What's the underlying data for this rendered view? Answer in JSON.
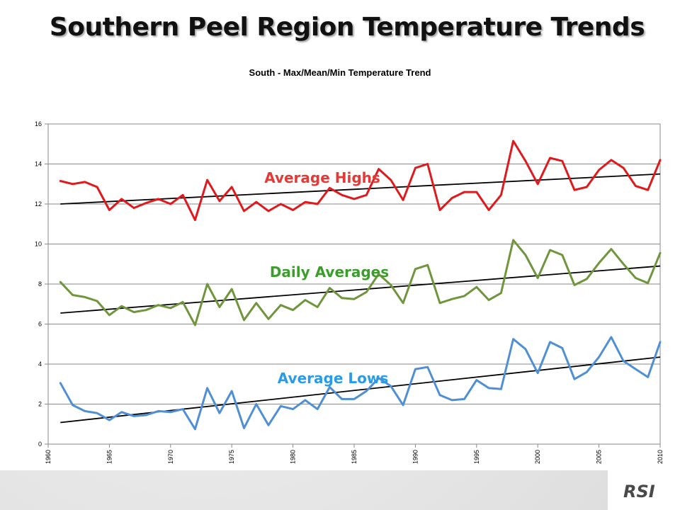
{
  "slide_title": "Southern Peel Region Temperature Trends",
  "logo_text": "RSI",
  "colors": {
    "highs": "#e0191c",
    "means": "#6f963c",
    "lows": "#4f8fd6",
    "trend": "#000000",
    "highs_label": "#e53935",
    "means_label": "#3c9e2a",
    "lows_label": "#2a9be8"
  },
  "chart_data": {
    "type": "line",
    "title": "South - Max/Mean/Min Temperature Trend",
    "xlim": [
      1960,
      2010
    ],
    "ylim": [
      0,
      16
    ],
    "x_ticks": [
      1960,
      1965,
      1970,
      1975,
      1980,
      1985,
      1990,
      1995,
      2000,
      2005,
      2010
    ],
    "y_ticks": [
      0,
      2,
      4,
      6,
      8,
      10,
      12,
      14,
      16
    ],
    "grid": true,
    "annotations": [
      "Average Highs",
      "Daily Averages",
      "Average Lows"
    ],
    "x": [
      1961,
      1962,
      1963,
      1964,
      1965,
      1966,
      1967,
      1968,
      1969,
      1970,
      1971,
      1972,
      1973,
      1974,
      1975,
      1976,
      1977,
      1978,
      1979,
      1980,
      1981,
      1982,
      1983,
      1984,
      1985,
      1986,
      1987,
      1988,
      1989,
      1990,
      1991,
      1992,
      1993,
      1994,
      1995,
      1996,
      1997,
      1998,
      1999,
      2000,
      2001,
      2002,
      2003,
      2004,
      2005,
      2006,
      2007,
      2008,
      2009,
      2010
    ],
    "series": [
      {
        "values": [
          13.15,
          13.0,
          13.1,
          12.85,
          11.7,
          12.25,
          11.8,
          12.05,
          12.25,
          12.0,
          12.45,
          11.2,
          13.2,
          12.15,
          12.85,
          11.65,
          12.1,
          11.65,
          12.0,
          11.7,
          12.1,
          12.0,
          12.8,
          12.45,
          12.25,
          12.45,
          13.75,
          13.2,
          12.2,
          13.8,
          14.0,
          11.7,
          12.3,
          12.6,
          12.6,
          11.7,
          12.45,
          15.15,
          14.15,
          13.0,
          14.3,
          14.15,
          12.7,
          12.85,
          13.7,
          14.2,
          13.8,
          12.9,
          12.7,
          14.2
        ]
      },
      {
        "values": [
          8.1,
          7.45,
          7.35,
          7.15,
          6.45,
          6.9,
          6.6,
          6.7,
          6.95,
          6.8,
          7.1,
          5.95,
          8.0,
          6.85,
          7.75,
          6.2,
          7.05,
          6.25,
          6.95,
          6.7,
          7.2,
          6.85,
          7.8,
          7.3,
          7.25,
          7.6,
          8.5,
          7.95,
          7.05,
          8.75,
          8.95,
          7.05,
          7.25,
          7.4,
          7.85,
          7.2,
          7.55,
          10.2,
          9.45,
          8.3,
          9.7,
          9.45,
          7.95,
          8.25,
          9.05,
          9.75,
          9.0,
          8.3,
          8.05,
          9.55
        ]
      },
      {
        "values": [
          3.05,
          1.95,
          1.65,
          1.55,
          1.2,
          1.6,
          1.4,
          1.45,
          1.65,
          1.6,
          1.75,
          0.75,
          2.8,
          1.55,
          2.65,
          0.8,
          2.0,
          0.95,
          1.9,
          1.75,
          2.2,
          1.75,
          2.85,
          2.25,
          2.25,
          2.65,
          3.3,
          2.9,
          1.95,
          3.75,
          3.85,
          2.45,
          2.2,
          2.25,
          3.2,
          2.8,
          2.75,
          5.25,
          4.75,
          3.55,
          5.1,
          4.8,
          3.25,
          3.6,
          4.35,
          5.35,
          4.15,
          3.75,
          3.35,
          5.1
        ]
      }
    ],
    "trend_lines": [
      {
        "x": [
          1961,
          2010
        ],
        "y": [
          12.0,
          13.5
        ]
      },
      {
        "x": [
          1961,
          2010
        ],
        "y": [
          6.55,
          8.9
        ]
      },
      {
        "x": [
          1961,
          2010
        ],
        "y": [
          1.08,
          4.35
        ]
      }
    ]
  }
}
